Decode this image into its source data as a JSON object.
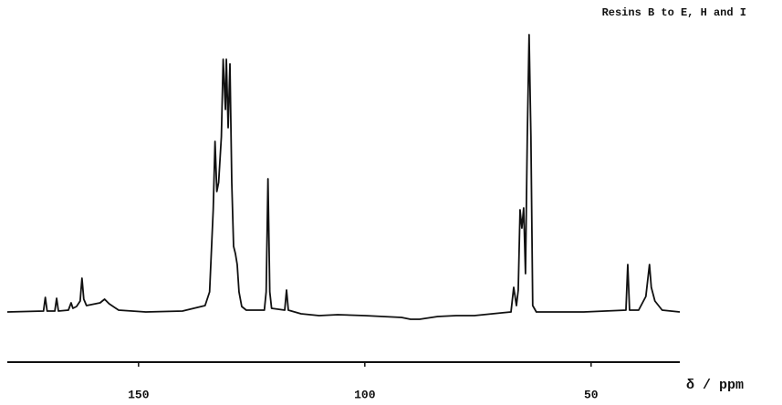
{
  "chart_data": {
    "type": "line",
    "title": "Resins B to E, H and I",
    "x_label": "δ / ppm",
    "x": [
      179.0,
      171.0,
      170.6,
      170.2,
      168.5,
      168.1,
      167.7,
      165.5,
      164.9,
      164.5,
      163.7,
      163.3,
      162.9,
      162.5,
      162.1,
      161.5,
      158.5,
      157.5,
      156.5,
      154.4,
      148.4,
      140.3,
      135.3,
      134.3,
      133.5,
      133.1,
      132.7,
      132.3,
      131.7,
      131.3,
      130.8,
      130.6,
      130.2,
      129.8,
      129.4,
      129.0,
      128.6,
      128.2,
      127.8,
      127.2,
      126.2,
      122.2,
      121.8,
      121.4,
      121.0,
      120.6,
      117.7,
      117.3,
      116.9,
      114.1,
      110.1,
      106.0,
      100.0,
      96.0,
      91.9,
      89.9,
      87.9,
      83.9,
      79.8,
      75.8,
      69.8,
      67.7,
      67.1,
      66.5,
      66.1,
      65.7,
      65.3,
      64.9,
      64.5,
      64.1,
      63.7,
      63.3,
      62.9,
      62.1,
      51.6,
      42.3,
      41.9,
      41.5,
      39.5,
      37.9,
      37.1,
      36.7,
      35.9,
      34.3,
      30.4
    ],
    "values": [
      0,
      1,
      16,
      1,
      1,
      15,
      1,
      2,
      10,
      4,
      6,
      9,
      12,
      37,
      14,
      7,
      10,
      14,
      9,
      2,
      0,
      1,
      7,
      22,
      112,
      187,
      132,
      142,
      192,
      277,
      222,
      277,
      202,
      272,
      142,
      72,
      64,
      52,
      22,
      6,
      2,
      2,
      22,
      146,
      22,
      4,
      2,
      24,
      2,
      -2,
      -4,
      -3,
      -4,
      -5,
      -6,
      -8,
      -8,
      -5,
      -4,
      -4,
      -1,
      0,
      27,
      7,
      24,
      112,
      92,
      114,
      42,
      192,
      304,
      192,
      7,
      0,
      0,
      2,
      52,
      2,
      2,
      17,
      52,
      27,
      12,
      2,
      0
    ],
    "color": "#111111",
    "xlim": [
      179,
      30.4
    ],
    "xticks": [
      150,
      100,
      50
    ],
    "ylim": [
      -20,
      304
    ]
  }
}
